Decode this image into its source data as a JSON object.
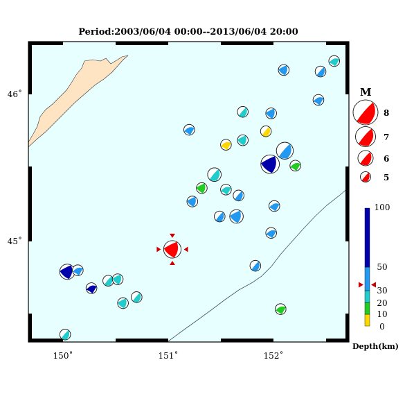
{
  "title": "Period:2003/06/04 00:00--2013/06/04 20:00",
  "map": {
    "lon_range": [
      149.7,
      152.75
    ],
    "lat_range": [
      44.3,
      46.31
    ],
    "lon_ticks": [
      {
        "value": 150,
        "label": "150˚"
      },
      {
        "value": 151,
        "label": "151˚"
      },
      {
        "value": 152,
        "label": "152˚"
      }
    ],
    "lat_ticks": [
      {
        "value": 46,
        "label": "46˚"
      },
      {
        "value": 45,
        "label": "45˚"
      }
    ],
    "ocean_color": "#e8ffff",
    "land_color": "#ffe4c4"
  },
  "magnitude_legend": {
    "title": "M",
    "items": [
      {
        "label": "8",
        "mag": 8
      },
      {
        "label": "7",
        "mag": 7
      },
      {
        "label": "6",
        "mag": 6
      },
      {
        "label": "5",
        "mag": 5
      }
    ]
  },
  "depth_legend": {
    "title": "Depth(km)",
    "labels": [
      "0",
      "10",
      "20",
      "30",
      "50",
      "100"
    ],
    "colors": [
      {
        "from": 0,
        "to": 10,
        "color": "#ffd700"
      },
      {
        "from": 10,
        "to": 20,
        "color": "#22cc22"
      },
      {
        "from": 20,
        "to": 30,
        "color": "#22cccc"
      },
      {
        "from": 30,
        "to": 50,
        "color": "#2299ee"
      },
      {
        "from": 50,
        "to": 100,
        "color": "#0000aa"
      }
    ],
    "marker_depth": 35
  },
  "target_event": {
    "lon": 151.07,
    "lat": 44.92,
    "mag": 6.4,
    "color": "#ff0000"
  },
  "events": [
    {
      "lon": 152.61,
      "lat": 46.18,
      "color": "#22cccc"
    },
    {
      "lon": 152.48,
      "lat": 46.11,
      "color": "#2299ee"
    },
    {
      "lon": 152.13,
      "lat": 46.12,
      "color": "#2299ee"
    },
    {
      "lon": 152.46,
      "lat": 45.92,
      "color": "#2299ee"
    },
    {
      "lon": 151.74,
      "lat": 45.84,
      "color": "#22cccc"
    },
    {
      "lon": 152.01,
      "lat": 45.83,
      "color": "#2299ee"
    },
    {
      "lon": 151.23,
      "lat": 45.72,
      "color": "#2299ee"
    },
    {
      "lon": 151.96,
      "lat": 45.71,
      "color": "#ffd700"
    },
    {
      "lon": 151.74,
      "lat": 45.65,
      "color": "#22cccc"
    },
    {
      "lon": 151.58,
      "lat": 45.62,
      "color": "#ffd700"
    },
    {
      "lon": 152.14,
      "lat": 45.58,
      "color": "#2299ee",
      "mag": 6.3
    },
    {
      "lon": 152.0,
      "lat": 45.49,
      "color": "#0000aa",
      "mag": 6.6
    },
    {
      "lon": 152.24,
      "lat": 45.48,
      "color": "#22cc22"
    },
    {
      "lon": 151.47,
      "lat": 45.42,
      "color": "#22cccc",
      "mag": 5.7
    },
    {
      "lon": 151.35,
      "lat": 45.33,
      "color": "#22cc22"
    },
    {
      "lon": 151.58,
      "lat": 45.32,
      "color": "#22cccc"
    },
    {
      "lon": 151.7,
      "lat": 45.28,
      "color": "#2299ee"
    },
    {
      "lon": 151.26,
      "lat": 45.24,
      "color": "#2299ee"
    },
    {
      "lon": 152.04,
      "lat": 45.21,
      "color": "#2299ee"
    },
    {
      "lon": 151.52,
      "lat": 45.14,
      "color": "#2299ee"
    },
    {
      "lon": 151.68,
      "lat": 45.14,
      "color": "#2299ee",
      "mag": 5.7
    },
    {
      "lon": 152.01,
      "lat": 45.03,
      "color": "#2299ee"
    },
    {
      "lon": 151.86,
      "lat": 44.81,
      "color": "#2299ee"
    },
    {
      "lon": 150.07,
      "lat": 44.77,
      "color": "#0000aa",
      "mag": 6.0
    },
    {
      "lon": 150.17,
      "lat": 44.78,
      "color": "#2299ee"
    },
    {
      "lon": 150.46,
      "lat": 44.71,
      "color": "#22cccc"
    },
    {
      "lon": 150.55,
      "lat": 44.72,
      "color": "#22cccc"
    },
    {
      "lon": 150.3,
      "lat": 44.66,
      "color": "#0000aa"
    },
    {
      "lon": 150.73,
      "lat": 44.6,
      "color": "#22cccc"
    },
    {
      "lon": 150.6,
      "lat": 44.56,
      "color": "#22cccc"
    },
    {
      "lon": 152.1,
      "lat": 44.52,
      "color": "#22cc22"
    },
    {
      "lon": 150.05,
      "lat": 44.35,
      "color": "#22cccc"
    }
  ]
}
